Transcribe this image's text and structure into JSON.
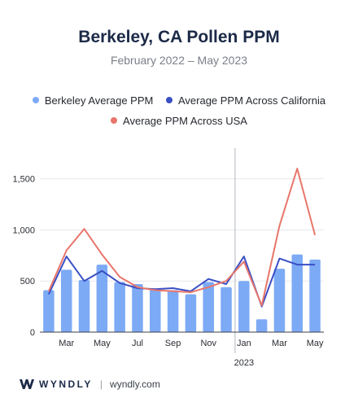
{
  "chart_data": {
    "type": "bar",
    "title": "Berkeley, CA Pollen PPM",
    "subtitle": "February 2022 – May 2023",
    "xlabel": "",
    "ylabel": "",
    "ylim": [
      0,
      1800
    ],
    "yticks": [
      0,
      500,
      1000,
      1500
    ],
    "ytick_labels": [
      "0",
      "500",
      "1,000",
      "1,500"
    ],
    "categories": [
      "Feb 2022",
      "Mar 2022",
      "Apr 2022",
      "May 2022",
      "Jun 2022",
      "Jul 2022",
      "Aug 2022",
      "Sep 2022",
      "Oct 2022",
      "Nov 2022",
      "Dec 2022",
      "Jan 2023",
      "Feb 2023",
      "Mar 2023",
      "Apr 2023",
      "May 2023"
    ],
    "x_tick_labels": [
      "",
      "Mar",
      "",
      "May",
      "",
      "Jul",
      "",
      "Sep",
      "",
      "Nov",
      "",
      "Jan",
      "",
      "Mar",
      "",
      "May"
    ],
    "year_marker": {
      "label": "2023",
      "at_category": "Jan 2023"
    },
    "legend_position": "top",
    "series": [
      {
        "name": "Berkeley Average PPM",
        "kind": "bar",
        "color": "#7daaf5",
        "values": [
          410,
          610,
          510,
          660,
          490,
          470,
          420,
          410,
          370,
          490,
          440,
          500,
          125,
          620,
          760,
          710
        ]
      },
      {
        "name": "Average PPM Across California",
        "kind": "line",
        "color": "#3a4fc4",
        "values": [
          370,
          740,
          500,
          600,
          480,
          430,
          420,
          430,
          400,
          520,
          470,
          740,
          250,
          720,
          660,
          660
        ]
      },
      {
        "name": "Average PPM Across USA",
        "kind": "line",
        "color": "#e8766b",
        "values": [
          400,
          800,
          1010,
          760,
          540,
          440,
          410,
          400,
          390,
          440,
          500,
          690,
          260,
          1040,
          1600,
          950
        ]
      }
    ]
  },
  "footer": {
    "brand": "WYNDLY",
    "separator": "|",
    "url": "wyndly.com"
  }
}
